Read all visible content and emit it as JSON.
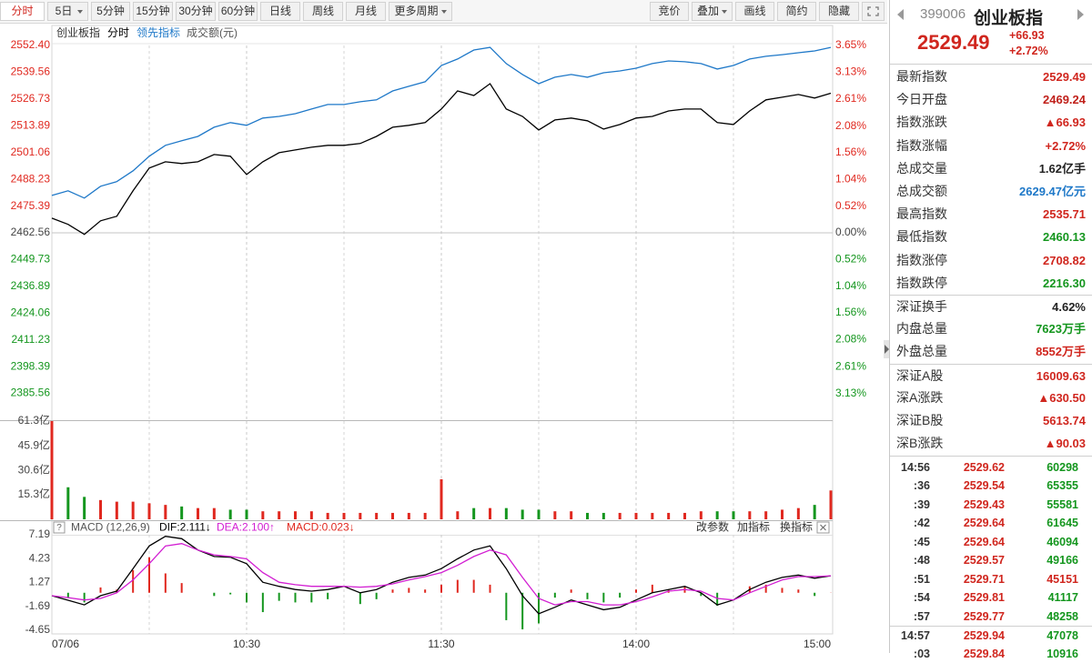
{
  "toolbar": {
    "left": [
      {
        "label": "分时",
        "active": true
      },
      {
        "label": "5日",
        "dropdown": true
      },
      {
        "label": "5分钟"
      },
      {
        "label": "15分钟"
      },
      {
        "label": "30分钟"
      },
      {
        "label": "60分钟"
      },
      {
        "label": "日线"
      },
      {
        "label": "周线"
      },
      {
        "label": "月线"
      },
      {
        "label": "更多周期",
        "dropdown": true
      }
    ],
    "right": [
      {
        "label": "竞价"
      },
      {
        "label": "叠加",
        "dropdown": true
      },
      {
        "label": "画线"
      },
      {
        "label": "简约"
      },
      {
        "label": "隐藏"
      }
    ]
  },
  "chart_data": [
    {
      "type": "line",
      "title": "创业板指",
      "up_color": "#e0281f",
      "down_color": "#14961e",
      "x": [
        0,
        5,
        10,
        15,
        20,
        25,
        30,
        35,
        40,
        45,
        50,
        55,
        60,
        65,
        70,
        75,
        80,
        85,
        90,
        95,
        100,
        105,
        110,
        115,
        120,
        125,
        130,
        135,
        140,
        145,
        150,
        155,
        160,
        165,
        170,
        175,
        180,
        185,
        190,
        195,
        200,
        205,
        210,
        215,
        220,
        225,
        230,
        235,
        240
      ],
      "xlim": [
        0,
        240
      ],
      "series": [
        {
          "name": "分时",
          "color": "#000000",
          "values": [
            2469.6,
            2466.6,
            2461.8,
            2468.3,
            2470.5,
            2482.7,
            2493.6,
            2496.6,
            2495.8,
            2496.6,
            2500.1,
            2499.3,
            2490.5,
            2496.6,
            2501.0,
            2502.3,
            2503.6,
            2504.5,
            2504.5,
            2505.4,
            2508.8,
            2513.2,
            2514.1,
            2515.4,
            2521.9,
            2530.6,
            2528.4,
            2534.1,
            2521.9,
            2518.4,
            2511.9,
            2516.7,
            2517.6,
            2516.3,
            2512.3,
            2514.5,
            2517.6,
            2518.4,
            2521.0,
            2521.9,
            2521.9,
            2515.4,
            2514.5,
            2521.0,
            2526.3,
            2527.6,
            2528.9,
            2527.2,
            2529.49
          ]
        },
        {
          "name": "领先指标",
          "color": "#1e78c8",
          "values": [
            2480.5,
            2482.7,
            2479.2,
            2484.9,
            2487.1,
            2492.3,
            2499.3,
            2504.5,
            2506.7,
            2508.8,
            2513.2,
            2515.4,
            2514.1,
            2517.6,
            2518.4,
            2519.7,
            2521.9,
            2524.1,
            2524.1,
            2525.4,
            2526.3,
            2530.6,
            2532.8,
            2535.0,
            2542.8,
            2545.9,
            2550.2,
            2551.5,
            2543.7,
            2538.5,
            2534.1,
            2537.2,
            2538.5,
            2537.2,
            2539.3,
            2540.2,
            2541.5,
            2543.7,
            2545.0,
            2544.6,
            2543.7,
            2541.1,
            2542.8,
            2545.9,
            2547.2,
            2548.0,
            2548.9,
            2549.8,
            2551.5
          ]
        }
      ],
      "ylim": [
        2372.72,
        2552.4
      ],
      "yticks": [
        {
          "value": 2552.4,
          "label": "2552.40"
        },
        2539.56,
        2526.73,
        2513.89,
        2501.06,
        2488.23,
        2475.39,
        2462.56,
        2449.73,
        2436.89,
        2424.06,
        2411.23,
        2398.39,
        2385.56
      ],
      "y2lim": [
        -3.65,
        3.65
      ],
      "y2ticks": [
        {
          "value": 3.65,
          "label": "3.65%"
        },
        {
          "value": 3.13,
          "label": "3.13%"
        },
        {
          "value": 2.61,
          "label": "2.61%"
        },
        {
          "value": 2.08,
          "label": "2.08%"
        },
        {
          "value": 1.56,
          "label": "1.56%"
        },
        {
          "value": 1.04,
          "label": "1.04%"
        },
        {
          "value": 0.52,
          "label": "0.52%"
        },
        {
          "value": 0,
          "label": "0.00%"
        },
        {
          "value": -0.52,
          "label": "0.52%"
        },
        {
          "value": -1.04,
          "label": "1.04%"
        },
        {
          "value": -1.56,
          "label": "1.56%"
        },
        {
          "value": -2.08,
          "label": "2.08%"
        },
        {
          "value": -2.61,
          "label": "2.61%"
        },
        {
          "value": -3.13,
          "label": "3.13%"
        }
      ]
    },
    {
      "type": "bar",
      "title": "成交额(元)",
      "up_color": "#e0281f",
      "down_color": "#14961e",
      "values": [
        61.3,
        20,
        14,
        12,
        11,
        11,
        10,
        9,
        8,
        7,
        7,
        6,
        6,
        5,
        5,
        5,
        5,
        4,
        4,
        4,
        4,
        4,
        4,
        4,
        25,
        5,
        7,
        7,
        7,
        6,
        6,
        5,
        5,
        4,
        4,
        4,
        4,
        4,
        4,
        4,
        5,
        5,
        5,
        5,
        5,
        6,
        7,
        9,
        18
      ],
      "ylim": [
        0,
        61.3
      ],
      "yticks": [
        {
          "value": 61.3,
          "label": "61.3亿"
        },
        {
          "value": 45.9,
          "label": "45.9亿"
        },
        {
          "value": 30.6,
          "label": "30.6亿"
        },
        {
          "value": 15.3,
          "label": "15.3亿"
        }
      ]
    },
    {
      "type": "macd",
      "title": "MACD (12,26,9)",
      "help_icon": "?",
      "buttons": [
        "改参数",
        "加指标",
        "换指标"
      ],
      "series": [
        {
          "name": "DIF:2.111↓",
          "color": "#000000",
          "values": [
            -0.37,
            -0.93,
            -1.5,
            -0.37,
            0.2,
            3.0,
            5.8,
            7.0,
            6.7,
            5.3,
            4.5,
            4.4,
            3.6,
            1.3,
            0.8,
            0.4,
            0.2,
            0.4,
            0.8,
            0,
            0.4,
            1.3,
            1.9,
            2.2,
            3.0,
            4.2,
            5.3,
            5.8,
            3.0,
            -0.37,
            -2.6,
            -1.8,
            -0.9,
            -1.5,
            -2.1,
            -1.8,
            -0.9,
            0,
            0.4,
            0.8,
            0,
            -1.5,
            -0.9,
            0.4,
            1.3,
            1.9,
            2.2,
            1.8,
            2.11
          ]
        },
        {
          "name": "DEA:2.100↑",
          "color": "#d21ed2",
          "values": [
            -0.37,
            -0.6,
            -0.9,
            -0.7,
            0,
            1.6,
            3.6,
            5.8,
            6.1,
            5.3,
            4.7,
            4.5,
            4.2,
            2.5,
            1.3,
            1.0,
            0.8,
            0.8,
            0.8,
            0.7,
            0.8,
            1.1,
            1.6,
            2.0,
            2.5,
            3.4,
            4.5,
            5.3,
            4.7,
            1.9,
            -0.7,
            -1.5,
            -1.1,
            -1.1,
            -1.5,
            -1.5,
            -1.1,
            -0.5,
            0.2,
            0.4,
            0.2,
            -0.7,
            -0.9,
            0,
            0.8,
            1.6,
            2.0,
            2.0,
            2.1
          ]
        },
        {
          "name": "MACD:0.023↓",
          "color": "#e0281f",
          "down_color": "#14961e",
          "values": [
            0,
            -0.66,
            -1.2,
            0.66,
            0.4,
            2.8,
            4.4,
            2.4,
            1.2,
            0,
            -0.4,
            -0.2,
            -1.2,
            -2.4,
            -1.0,
            -1.2,
            -1.2,
            -0.8,
            0,
            -1.4,
            -0.8,
            0.4,
            0.6,
            0.4,
            1.0,
            1.6,
            1.6,
            1.0,
            -3.4,
            -4.54,
            -3.8,
            -0.6,
            0.4,
            -0.8,
            -1.2,
            -0.6,
            0.4,
            1.0,
            0.4,
            0.8,
            -0.4,
            -1.6,
            0,
            0.8,
            1.0,
            0.6,
            0.4,
            -0.4,
            0.02
          ]
        }
      ],
      "ylim": [
        -4.65,
        7.19
      ],
      "yticks": [
        7.19,
        4.23,
        1.27,
        -1.69,
        -4.65
      ],
      "xticks": [
        {
          "value": 0,
          "label": "07/06"
        },
        {
          "value": 60,
          "label": "10:30"
        },
        {
          "value": 120,
          "label": "11:30"
        },
        {
          "value": 180,
          "label": "14:00"
        },
        {
          "value": 240,
          "label": "15:00"
        }
      ]
    }
  ],
  "quote": {
    "code": "399006",
    "name": "创业板指",
    "price": "2529.49",
    "change": "+66.93",
    "pct": "+2.72%",
    "color": "#d0261e",
    "stats": [
      [
        {
          "label": "最新指数",
          "value": "2529.49",
          "color": "#d0261e"
        },
        {
          "label": "今日开盘",
          "value": "2469.24",
          "color": "#c0201a"
        },
        {
          "label": "指数涨跌",
          "value": "▲66.93",
          "color": "#d0261e"
        },
        {
          "label": "指数涨幅",
          "value": "+2.72%",
          "color": "#d0261e"
        },
        {
          "label": "总成交量",
          "value": "1.62亿手",
          "color": "#222222"
        },
        {
          "label": "总成交额",
          "value": "2629.47亿元",
          "color": "#1e78c8"
        },
        {
          "label": "最高指数",
          "value": "2535.71",
          "color": "#d0261e"
        },
        {
          "label": "最低指数",
          "value": "2460.13",
          "color": "#14961e"
        },
        {
          "label": "指数涨停",
          "value": "2708.82",
          "color": "#d0261e"
        },
        {
          "label": "指数跌停",
          "value": "2216.30",
          "color": "#14961e"
        }
      ],
      [
        {
          "label": "深证换手",
          "value": "4.62%",
          "color": "#222222"
        },
        {
          "label": "内盘总量",
          "value": "7623万手",
          "color": "#14961e"
        },
        {
          "label": "外盘总量",
          "value": "8552万手",
          "color": "#d0261e"
        }
      ],
      [
        {
          "label": "深证A股",
          "value": "16009.63",
          "color": "#d0261e"
        },
        {
          "label": "深A涨跌",
          "value": "▲630.50",
          "color": "#d0261e"
        },
        {
          "label": "深证B股",
          "value": "5613.74",
          "color": "#d0261e"
        },
        {
          "label": "深B涨跌",
          "value": "▲90.03",
          "color": "#d0261e"
        }
      ]
    ],
    "ticks": [
      [
        {
          "time": "14:56",
          "price": "2529.62",
          "volume": "60298",
          "color": "#14961e"
        },
        {
          "time": ":36",
          "price": "2529.54",
          "volume": "65355",
          "color": "#14961e"
        },
        {
          "time": ":39",
          "price": "2529.43",
          "volume": "55581",
          "color": "#14961e"
        },
        {
          "time": ":42",
          "price": "2529.64",
          "volume": "61645",
          "color": "#14961e"
        },
        {
          "time": ":45",
          "price": "2529.64",
          "volume": "46094",
          "color": "#14961e"
        },
        {
          "time": ":48",
          "price": "2529.57",
          "volume": "49166",
          "color": "#14961e"
        },
        {
          "time": ":51",
          "price": "2529.71",
          "volume": "45151",
          "color": "#d0261e"
        },
        {
          "time": ":54",
          "price": "2529.81",
          "volume": "41117",
          "color": "#14961e"
        },
        {
          "time": ":57",
          "price": "2529.77",
          "volume": "48258",
          "color": "#14961e"
        }
      ],
      [
        {
          "time": "14:57",
          "price": "2529.94",
          "volume": "47078",
          "color": "#14961e"
        },
        {
          "time": ":03",
          "price": "2529.84",
          "volume": "10916",
          "color": "#14961e"
        }
      ]
    ]
  }
}
